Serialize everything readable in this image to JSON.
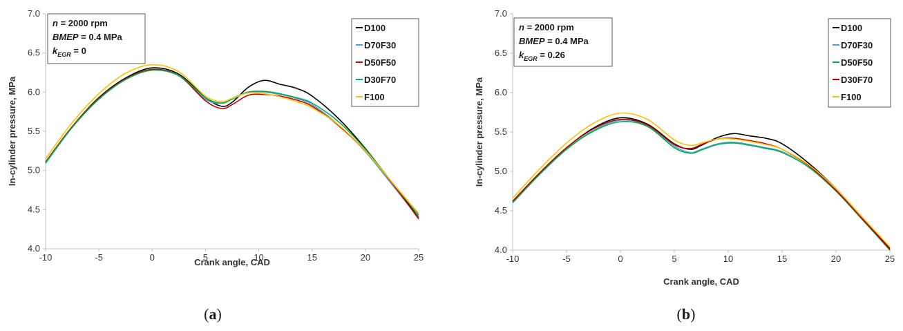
{
  "chart_data": [
    {
      "type": "line",
      "panel_label": "a",
      "xlabel": "Crank angle, CAD",
      "ylabel": "In-cylinder pressure, MPa",
      "xlim": [
        -10,
        25
      ],
      "ylim": [
        4.0,
        7.0
      ],
      "xticks": [
        "-10",
        "-5",
        "0",
        "5",
        "10",
        "15",
        "20",
        "25"
      ],
      "yticks": [
        "4.0",
        "4.5",
        "5.0",
        "5.5",
        "6.0",
        "6.5",
        "7.0"
      ],
      "conditions": [
        {
          "var": "n",
          "sub": "",
          "value": " = 2000 rpm"
        },
        {
          "var": "BMEP",
          "sub": "",
          "value": " = 0.4 MPa"
        },
        {
          "var": "k",
          "sub": "EGR",
          "value": " = 0"
        }
      ],
      "legend_position": "top-right",
      "x": [
        -10,
        -7.5,
        -5,
        -2.5,
        0,
        2.5,
        5,
        6.5,
        7.5,
        9,
        10.5,
        12,
        13.5,
        15,
        17.5,
        20,
        22.5,
        25
      ],
      "series": [
        {
          "name": "D100",
          "color": "#000000",
          "values": [
            5.1,
            5.56,
            5.93,
            6.18,
            6.31,
            6.23,
            5.93,
            5.82,
            5.87,
            6.06,
            6.15,
            6.1,
            6.05,
            5.95,
            5.66,
            5.28,
            4.84,
            4.4
          ]
        },
        {
          "name": "D70F30",
          "color": "#5b9bd5",
          "values": [
            5.09,
            5.55,
            5.91,
            6.16,
            6.28,
            6.21,
            5.91,
            5.86,
            5.92,
            6.0,
            6.0,
            5.97,
            5.92,
            5.84,
            5.58,
            5.24,
            4.82,
            4.39
          ]
        },
        {
          "name": "D50F50",
          "color": "#c00000",
          "values": [
            5.11,
            5.56,
            5.92,
            6.17,
            6.29,
            6.21,
            5.89,
            5.79,
            5.84,
            5.96,
            5.97,
            5.95,
            5.9,
            5.82,
            5.57,
            5.25,
            4.84,
            4.38
          ]
        },
        {
          "name": "D30F70",
          "color": "#00b050",
          "values": [
            5.1,
            5.55,
            5.91,
            6.16,
            6.28,
            6.21,
            5.93,
            5.86,
            5.91,
            6.0,
            6.01,
            5.98,
            5.93,
            5.86,
            5.62,
            5.27,
            4.85,
            4.43
          ]
        },
        {
          "name": "F100",
          "color": "#ffc000",
          "values": [
            5.15,
            5.61,
            5.98,
            6.24,
            6.35,
            6.26,
            5.95,
            5.88,
            5.92,
            5.99,
            5.98,
            5.94,
            5.88,
            5.8,
            5.58,
            5.25,
            4.85,
            4.45
          ]
        }
      ]
    },
    {
      "type": "line",
      "panel_label": "b",
      "xlabel": "Crank angle, CAD",
      "ylabel": "In-cylinder pressure, MPa",
      "xlim": [
        -10,
        25
      ],
      "ylim": [
        4.0,
        7.0
      ],
      "xticks": [
        "-10",
        "-5",
        "0",
        "5",
        "10",
        "15",
        "20",
        "25"
      ],
      "yticks": [
        "4.0",
        "4.5",
        "5.0",
        "5.5",
        "6.0",
        "6.5",
        "7.0"
      ],
      "conditions": [
        {
          "var": "n",
          "sub": "",
          "value": " = 2000 rpm"
        },
        {
          "var": "BMEP",
          "sub": "",
          "value": " = 0.4 MPa"
        },
        {
          "var": "k",
          "sub": "EGR",
          "value": " = 0.26"
        }
      ],
      "legend_position": "top-right",
      "x": [
        -10,
        -7.5,
        -5,
        -2.5,
        0,
        2.5,
        5,
        6.5,
        7.5,
        9,
        10.5,
        12,
        13.5,
        15,
        17.5,
        20,
        22.5,
        25
      ],
      "series": [
        {
          "name": "D100",
          "color": "#000000",
          "values": [
            4.62,
            4.98,
            5.3,
            5.55,
            5.68,
            5.6,
            5.35,
            5.28,
            5.33,
            5.43,
            5.48,
            5.45,
            5.42,
            5.35,
            5.1,
            4.78,
            4.4,
            4.02
          ]
        },
        {
          "name": "D70F30",
          "color": "#5b9bd5",
          "values": [
            4.61,
            4.97,
            5.28,
            5.52,
            5.65,
            5.58,
            5.32,
            5.24,
            5.28,
            5.35,
            5.37,
            5.34,
            5.3,
            5.25,
            5.05,
            4.75,
            4.38,
            4.01
          ]
        },
        {
          "name": "D50F50",
          "color": "#00b050",
          "values": [
            4.6,
            4.96,
            5.28,
            5.51,
            5.63,
            5.57,
            5.3,
            5.23,
            5.27,
            5.34,
            5.36,
            5.33,
            5.29,
            5.24,
            5.05,
            4.75,
            4.38,
            4.0
          ]
        },
        {
          "name": "D30F70",
          "color": "#c00000",
          "values": [
            4.62,
            4.98,
            5.3,
            5.54,
            5.66,
            5.59,
            5.34,
            5.29,
            5.34,
            5.41,
            5.42,
            5.39,
            5.35,
            5.28,
            5.07,
            4.76,
            4.39,
            4.01
          ]
        },
        {
          "name": "F100",
          "color": "#ffc000",
          "values": [
            4.66,
            5.03,
            5.36,
            5.61,
            5.74,
            5.66,
            5.4,
            5.33,
            5.36,
            5.41,
            5.41,
            5.38,
            5.34,
            5.28,
            5.08,
            4.78,
            4.41,
            4.04
          ]
        }
      ]
    }
  ]
}
